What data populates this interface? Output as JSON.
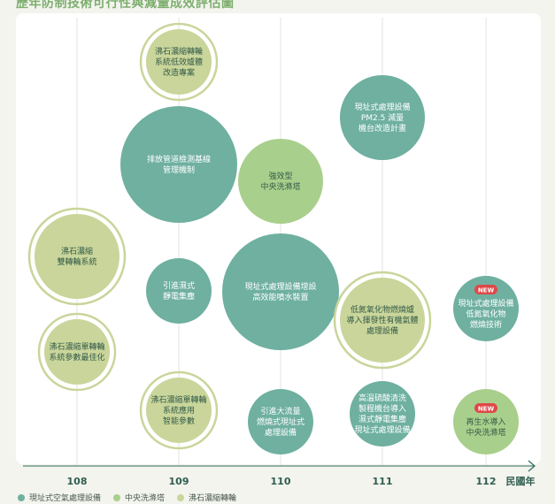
{
  "title": "歷年防制技術可行性與減量成效評估圖",
  "colors": {
    "teal": "#6fb0a0",
    "light_green": "#a9cf8c",
    "olive": "#c9d59a",
    "badge": "#e04848",
    "axis": "#2f6b5d"
  },
  "chart_data": {
    "type": "bubble",
    "xlabel": "民國年",
    "x_ticks": [
      "108",
      "109",
      "110",
      "111",
      "112"
    ],
    "legend_position": "bottom-left",
    "series": [
      {
        "name": "現址式空氣處理設備",
        "color": "#6fb0a0"
      },
      {
        "name": "中央洗滌塔",
        "color": "#a9cf8c"
      },
      {
        "name": "沸石濃縮轉輪",
        "color": "#c9d59a"
      }
    ],
    "bubbles": [
      {
        "id": "b1",
        "x": "109",
        "series": "沸石濃縮轉輪",
        "lines": [
          "沸石濃縮轉輪",
          "系統低效爐體",
          "改造專案"
        ],
        "size": "small",
        "ring": true,
        "new": false
      },
      {
        "id": "b2",
        "x": "109",
        "series": "現址式空氣處理設備",
        "lines": [
          "排放管道檢測基線",
          "管理機制"
        ],
        "size": "large",
        "ring": false,
        "new": false
      },
      {
        "id": "b3",
        "x": "109",
        "series": "現址式空氣處理設備",
        "lines": [
          "引進濕式",
          "靜電集塵"
        ],
        "size": "small",
        "ring": false,
        "new": false
      },
      {
        "id": "b4",
        "x": "109",
        "series": "沸石濃縮轉輪",
        "lines": [
          "沸石濃縮單轉輪",
          "系統應用",
          "智能參數"
        ],
        "size": "small",
        "ring": true,
        "new": false
      },
      {
        "id": "b5",
        "x": "110",
        "series": "中央洗滌塔",
        "lines": [
          "強效型",
          "中央洗滌塔"
        ],
        "size": "medium",
        "ring": false,
        "new": false
      },
      {
        "id": "b6",
        "x": "110",
        "series": "現址式空氣處理設備",
        "lines": [
          "現址式處理設備增設",
          "高效能噴水裝置"
        ],
        "size": "large",
        "ring": false,
        "new": false
      },
      {
        "id": "b7",
        "x": "110",
        "series": "現址式空氣處理設備",
        "lines": [
          "引進大流量",
          "燃燒式現址式",
          "處理設備"
        ],
        "size": "small",
        "ring": false,
        "new": false
      },
      {
        "id": "b8",
        "x": "111",
        "series": "現址式空氣處理設備",
        "lines": [
          "現址式處理設備",
          "PM2.5 減量",
          "機台改造計畫"
        ],
        "size": "medium",
        "ring": false,
        "new": false
      },
      {
        "id": "b9",
        "x": "111",
        "series": "沸石濃縮轉輪",
        "lines": [
          "低氮氧化物燃燒爐",
          "導入揮發性有機氣體",
          "處理設備"
        ],
        "size": "medium",
        "ring": true,
        "new": false
      },
      {
        "id": "b10",
        "x": "111",
        "series": "現址式空氣處理設備",
        "lines": [
          "高溫硫酸清洗",
          "製程機台導入",
          "濕式靜電集塵",
          "現址式處理設備"
        ],
        "size": "small",
        "ring": false,
        "new": false
      },
      {
        "id": "b11",
        "x": "108",
        "series": "沸石濃縮轉輪",
        "lines": [
          "沸石濃縮",
          "雙轉輪系統"
        ],
        "size": "medium",
        "ring": true,
        "new": false
      },
      {
        "id": "b12",
        "x": "108",
        "series": "沸石濃縮轉輪",
        "lines": [
          "沸石濃縮單轉輪",
          "系統參數最佳化"
        ],
        "size": "small",
        "ring": true,
        "new": false
      },
      {
        "id": "b13",
        "x": "112",
        "series": "現址式空氣處理設備",
        "lines": [
          "現址式處理設備",
          "低氮氧化物",
          "燃燒技術"
        ],
        "size": "small",
        "ring": false,
        "new": true
      },
      {
        "id": "b14",
        "x": "112",
        "series": "中央洗滌塔",
        "lines": [
          "再生水導入",
          "中央洗滌塔"
        ],
        "size": "small",
        "ring": false,
        "new": true
      }
    ]
  },
  "badge_text": "NEW"
}
